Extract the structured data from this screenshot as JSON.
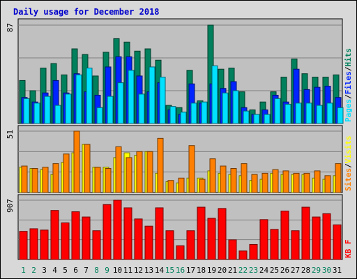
{
  "chart_data": {
    "type": "bar",
    "title": "Daily usage for December 2018",
    "categories": [
      "1",
      "2",
      "3",
      "4",
      "5",
      "6",
      "7",
      "8",
      "9",
      "10",
      "11",
      "12",
      "13",
      "14",
      "15",
      "16",
      "17",
      "18",
      "19",
      "20",
      "21",
      "22",
      "23",
      "24",
      "25",
      "26",
      "27",
      "28",
      "29",
      "30",
      "31"
    ],
    "weekend_days": [
      "1",
      "2",
      "8",
      "9",
      "15",
      "16",
      "22",
      "23",
      "29",
      "30"
    ],
    "colors": {
      "hits": "#00805c",
      "files": "#0024ff",
      "pages": "#00e0ff",
      "visits": "#ffff00",
      "sites": "#ff8000",
      "kbf": "#ff0000",
      "weekday_label": "#000000",
      "weekend_label": "#00805c",
      "plot_bg": "#c0c0c0",
      "frame_bg": "#d8d8d8",
      "grid": "#808080"
    },
    "panels": [
      {
        "id": "hits",
        "ymax_label": "87",
        "ylim": [
          0,
          87
        ],
        "legend": [
          {
            "text": "Pages",
            "color": "#00e0ff"
          },
          {
            "text": "/",
            "color": "#000000"
          },
          {
            "text": "Files",
            "color": "#0024ff"
          },
          {
            "text": "/",
            "color": "#000000"
          },
          {
            "text": "Hits",
            "color": "#00805c"
          }
        ],
        "series": [
          {
            "name": "Hits",
            "color": "#00805c",
            "values": [
              38,
              29,
              49,
              53,
              43,
              66,
              61,
              42,
              63,
              75,
              72,
              64,
              66,
              56,
              16,
              14,
              47,
              20,
              87,
              48,
              49,
              28,
              12,
              19,
              28,
              41,
              57,
              44,
              41,
              41,
              43
            ]
          },
          {
            "name": "Files",
            "color": "#0024ff",
            "values": [
              23,
              19,
              27,
              38,
              27,
              44,
              28,
              25,
              50,
              59,
              59,
              42,
              28,
              36,
              12,
              8,
              35,
              18,
              35,
              31,
              37,
              14,
              8,
              12,
              25,
              19,
              48,
              30,
              32,
              33,
              23
            ]
          },
          {
            "name": "Pages",
            "color": "#00e0ff",
            "values": [
              22,
              18,
              24,
              16,
              26,
              43,
              49,
              14,
              24,
              36,
              47,
              26,
              50,
              41,
              15,
              10,
              18,
              19,
              51,
              27,
              29,
              11,
              8,
              8,
              22,
              17,
              18,
              18,
              16,
              18,
              14
            ]
          }
        ]
      },
      {
        "id": "visits",
        "ymax_label": "51",
        "ylim": [
          0,
          51
        ],
        "legend": [
          {
            "text": "Sites",
            "color": "#ff8000"
          },
          {
            "text": "/",
            "color": "#000000"
          },
          {
            "text": "Visits",
            "color": "#ffff00"
          }
        ],
        "series": [
          {
            "name": "Visits",
            "color": "#ffff00",
            "values": [
              21,
              20,
              19,
              15,
              25,
              33,
              40,
              21,
              21,
              29,
              33,
              31,
              34,
              16,
              9,
              8,
              12,
              12,
              18,
              16,
              15,
              14,
              10,
              11,
              16,
              15,
              15,
              15,
              12,
              11,
              14
            ]
          },
          {
            "name": "Sites",
            "color": "#ff8000",
            "values": [
              22,
              20,
              21,
              24,
              32,
              51,
              40,
              21,
              20,
              38,
              29,
              34,
              34,
              45,
              10,
              12,
              39,
              11,
              28,
              22,
              20,
              24,
              15,
              16,
              19,
              18,
              16,
              16,
              18,
              14,
              24
            ]
          }
        ]
      },
      {
        "id": "kbf",
        "ymax_label": "907",
        "ylim": [
          0,
          907
        ],
        "legend": [
          {
            "text": "KB F",
            "color": "#ff0000"
          }
        ],
        "series": [
          {
            "name": "KB F",
            "color": "#ff0000",
            "values": [
              430,
              470,
              450,
              750,
              560,
              730,
              650,
              440,
              840,
              907,
              790,
              620,
              510,
              790,
              440,
              210,
              440,
              800,
              630,
              780,
              300,
              130,
              230,
              610,
              460,
              740,
              440,
              800,
              650,
              700,
              530
            ]
          }
        ]
      }
    ]
  }
}
